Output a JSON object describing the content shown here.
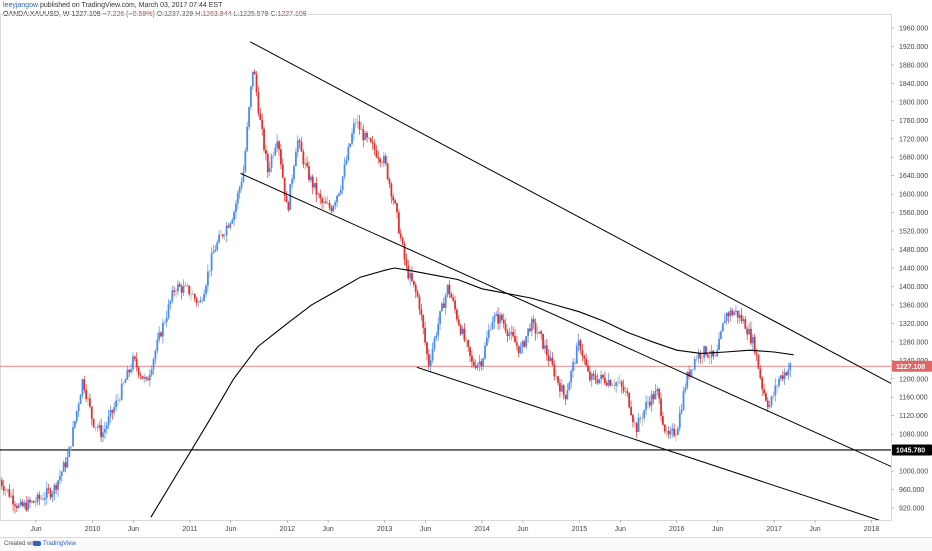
{
  "header": {
    "publisher": "leeyjangow",
    "published_text": " published on TradingView.com, March 03, 2017 07:44 EST",
    "symbol": "OANDA:XAUUSD, W",
    "last": "1227.108",
    "change": "−7.226 (−0.59%)",
    "open_label": "O:",
    "open": "1237.329",
    "high_label": "H:",
    "high": "1263.944",
    "low_label": "L:",
    "low": "1225.579",
    "close_label": "C:",
    "close": "1227.108"
  },
  "footer": {
    "created_with": "Created with",
    "brand": "TradingView"
  },
  "colors": {
    "up": "#4a8df0",
    "down": "#e03030",
    "doji": "#aaaaaa",
    "trendline": "#000000",
    "ma": "#000000",
    "price_line": "#e06666",
    "support_line": "#000000",
    "grid_axis": "#dadada"
  },
  "chart_data": {
    "type": "candlestick",
    "instrument": "OANDA:XAUUSD",
    "timeframe": "W",
    "y_axis": {
      "range": [
        880,
        1970
      ],
      "ticks": [
        "1960.000",
        "1920.000",
        "1880.000",
        "1840.000",
        "1800.000",
        "1760.000",
        "1720.000",
        "1680.000",
        "1640.000",
        "1600.000",
        "1560.000",
        "1520.000",
        "1480.000",
        "1440.000",
        "1400.000",
        "1360.000",
        "1320.000",
        "1280.000",
        "1240.000",
        "1200.000",
        "1160.000",
        "1120.000",
        "1080.000",
        "1040.000",
        "1000.000",
        "960.000",
        "920.000"
      ]
    },
    "x_axis": {
      "range": [
        2009.05,
        2018.2
      ],
      "ticks": [
        {
          "label": "Jun",
          "t": 2009.42
        },
        {
          "label": "2010",
          "t": 2010.0
        },
        {
          "label": "Jun",
          "t": 2010.42
        },
        {
          "label": "2011",
          "t": 2011.0
        },
        {
          "label": "Jun",
          "t": 2011.42
        },
        {
          "label": "2012",
          "t": 2012.0
        },
        {
          "label": "Jun",
          "t": 2012.42
        },
        {
          "label": "2013",
          "t": 2013.0
        },
        {
          "label": "Jun",
          "t": 2013.42
        },
        {
          "label": "2014",
          "t": 2014.0
        },
        {
          "label": "Jun",
          "t": 2014.42
        },
        {
          "label": "2015",
          "t": 2015.0
        },
        {
          "label": "Jun",
          "t": 2015.42
        },
        {
          "label": "2016",
          "t": 2016.0
        },
        {
          "label": "Jun",
          "t": 2016.42
        },
        {
          "label": "2017",
          "t": 2017.0
        },
        {
          "label": "Jun",
          "t": 2017.42
        },
        {
          "label": "2018",
          "t": 2018.0
        }
      ]
    },
    "price_series": [
      [
        2009.05,
        980
      ],
      [
        2009.25,
        920
      ],
      [
        2009.42,
        935
      ],
      [
        2009.6,
        960
      ],
      [
        2009.75,
        1030
      ],
      [
        2009.9,
        1200
      ],
      [
        2010.0,
        1110
      ],
      [
        2010.1,
        1080
      ],
      [
        2010.25,
        1150
      ],
      [
        2010.42,
        1240
      ],
      [
        2010.55,
        1190
      ],
      [
        2010.7,
        1300
      ],
      [
        2010.85,
        1400
      ],
      [
        2011.0,
        1390
      ],
      [
        2011.1,
        1360
      ],
      [
        2011.25,
        1480
      ],
      [
        2011.35,
        1520
      ],
      [
        2011.45,
        1560
      ],
      [
        2011.55,
        1650
      ],
      [
        2011.65,
        1880
      ],
      [
        2011.72,
        1760
      ],
      [
        2011.8,
        1650
      ],
      [
        2011.9,
        1730
      ],
      [
        2012.0,
        1560
      ],
      [
        2012.1,
        1720
      ],
      [
        2012.2,
        1650
      ],
      [
        2012.35,
        1580
      ],
      [
        2012.45,
        1570
      ],
      [
        2012.55,
        1620
      ],
      [
        2012.7,
        1760
      ],
      [
        2012.8,
        1720
      ],
      [
        2012.92,
        1690
      ],
      [
        2013.0,
        1670
      ],
      [
        2013.1,
        1580
      ],
      [
        2013.22,
        1440
      ],
      [
        2013.35,
        1370
      ],
      [
        2013.45,
        1230
      ],
      [
        2013.55,
        1320
      ],
      [
        2013.65,
        1400
      ],
      [
        2013.75,
        1330
      ],
      [
        2013.9,
        1230
      ],
      [
        2014.0,
        1240
      ],
      [
        2014.1,
        1330
      ],
      [
        2014.2,
        1330
      ],
      [
        2014.3,
        1290
      ],
      [
        2014.4,
        1260
      ],
      [
        2014.5,
        1320
      ],
      [
        2014.6,
        1290
      ],
      [
        2014.75,
        1210
      ],
      [
        2014.85,
        1160
      ],
      [
        2015.0,
        1280
      ],
      [
        2015.1,
        1200
      ],
      [
        2015.25,
        1200
      ],
      [
        2015.4,
        1190
      ],
      [
        2015.5,
        1160
      ],
      [
        2015.58,
        1090
      ],
      [
        2015.7,
        1150
      ],
      [
        2015.8,
        1170
      ],
      [
        2015.9,
        1070
      ],
      [
        2016.0,
        1090
      ],
      [
        2016.1,
        1200
      ],
      [
        2016.2,
        1250
      ],
      [
        2016.3,
        1260
      ],
      [
        2016.4,
        1240
      ],
      [
        2016.5,
        1340
      ],
      [
        2016.6,
        1345
      ],
      [
        2016.7,
        1320
      ],
      [
        2016.8,
        1270
      ],
      [
        2016.88,
        1180
      ],
      [
        2016.95,
        1140
      ],
      [
        2017.05,
        1200
      ],
      [
        2017.17,
        1227
      ]
    ],
    "moving_average": [
      [
        2010.6,
        900
      ],
      [
        2010.8,
        970
      ],
      [
        2011.0,
        1040
      ],
      [
        2011.2,
        1110
      ],
      [
        2011.45,
        1200
      ],
      [
        2011.7,
        1270
      ],
      [
        2012.0,
        1320
      ],
      [
        2012.25,
        1360
      ],
      [
        2012.5,
        1390
      ],
      [
        2012.75,
        1420
      ],
      [
        2013.0,
        1435
      ],
      [
        2013.1,
        1440
      ],
      [
        2013.25,
        1435
      ],
      [
        2013.5,
        1425
      ],
      [
        2013.75,
        1415
      ],
      [
        2014.0,
        1395
      ],
      [
        2014.25,
        1385
      ],
      [
        2014.5,
        1375
      ],
      [
        2014.75,
        1360
      ],
      [
        2015.0,
        1345
      ],
      [
        2015.25,
        1325
      ],
      [
        2015.5,
        1300
      ],
      [
        2015.75,
        1280
      ],
      [
        2016.0,
        1262
      ],
      [
        2016.25,
        1255
      ],
      [
        2016.5,
        1258
      ],
      [
        2016.75,
        1262
      ],
      [
        2017.0,
        1258
      ],
      [
        2017.2,
        1252
      ]
    ],
    "trendlines": [
      {
        "name": "upper-channel",
        "from": [
          2011.62,
          1930
        ],
        "to": [
          2018.2,
          1190
        ]
      },
      {
        "name": "middle-channel",
        "from": [
          2011.52,
          1645
        ],
        "to": [
          2018.2,
          1010
        ]
      },
      {
        "name": "lower-channel",
        "from": [
          2013.33,
          1225
        ],
        "to": [
          2018.2,
          885
        ]
      }
    ],
    "horizontal_levels": [
      {
        "name": "support",
        "value": 1045.78,
        "label": "1045.780"
      },
      {
        "name": "last-price",
        "value": 1227.108,
        "label": "1227.108"
      }
    ]
  }
}
